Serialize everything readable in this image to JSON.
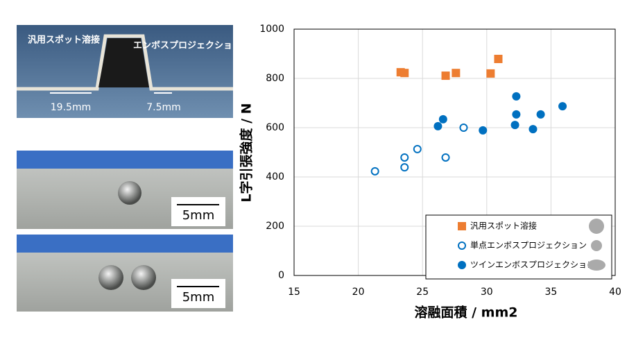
{
  "photos": {
    "top_left_label": "汎用スポット溶接",
    "top_right_label": "エンボスプロジェクション溶接",
    "left_width": "19.5mm",
    "right_width": "7.5mm",
    "scale_1": "5mm",
    "scale_2": "5mm"
  },
  "chart_data": {
    "type": "scatter",
    "xlabel": "溶融面積 / mm2",
    "ylabel": "L字引張強度 / N",
    "xlim": [
      15,
      40
    ],
    "xticks": [
      15,
      20,
      25,
      30,
      35,
      40
    ],
    "ylim": [
      0,
      1000
    ],
    "yticks": [
      0,
      200,
      400,
      600,
      800,
      1000
    ],
    "grid": true,
    "legend": "lower right",
    "series": [
      {
        "name": "汎用スポット溶接",
        "color": "#ed7d31",
        "marker": "square",
        "x": [
          23.3,
          23.6,
          26.8,
          27.6,
          30.3,
          30.9
        ],
        "values": [
          825,
          822,
          811,
          822,
          820,
          879
        ]
      },
      {
        "name": "単点エンボスプロジェクション",
        "color": "#0070c0",
        "marker": "open-circle",
        "x": [
          21.3,
          23.6,
          23.6,
          24.6,
          26.8,
          28.2
        ],
        "values": [
          423,
          479,
          439,
          513,
          479,
          600
        ]
      },
      {
        "name": "ツインエンボスプロジェクション",
        "color": "#0070c0",
        "marker": "circle",
        "x": [
          26.2,
          26.6,
          29.7,
          32.3,
          32.3,
          32.2,
          33.6,
          34.2,
          35.9
        ],
        "values": [
          606,
          634,
          589,
          727,
          654,
          611,
          594,
          654,
          687
        ]
      }
    ]
  }
}
